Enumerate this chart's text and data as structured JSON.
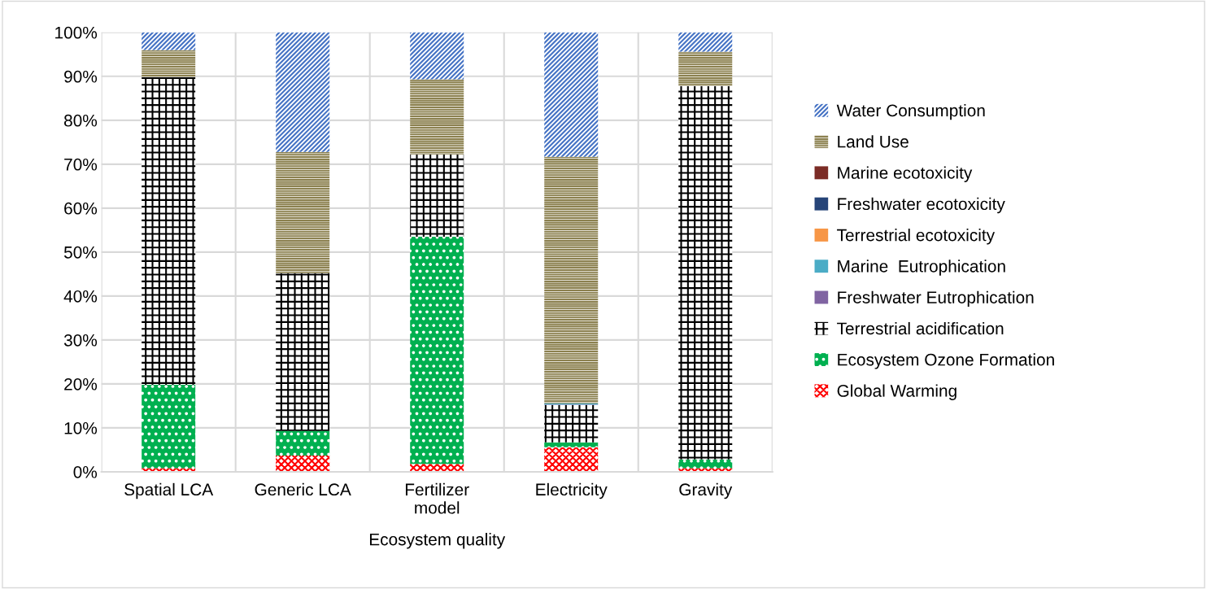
{
  "chart_data": {
    "type": "bar",
    "stacked": true,
    "xlabel": "Ecosystem quality",
    "categories": [
      "Spatial LCA",
      "Generic LCA",
      "Fertilizer\nmodel",
      "Electricity",
      "Gravity"
    ],
    "series": [
      {
        "name": "Global Warming",
        "color": "#ff0000",
        "values": [
          0.8,
          3.7,
          1.8,
          5.6,
          0.8
        ]
      },
      {
        "name": "Ecosystem Ozone Formation",
        "color": "#00b050",
        "values": [
          19.0,
          5.6,
          51.7,
          1.1,
          2.0
        ]
      },
      {
        "name": "Terrestrial acidification",
        "color": "#000000",
        "values": [
          70.0,
          35.9,
          18.7,
          8.5,
          85.0
        ]
      },
      {
        "name": "Freshwater Eutrophication",
        "color": "#8064a2",
        "values": [
          0,
          0,
          0,
          0.1,
          0
        ]
      },
      {
        "name": "Marine  Eutrophication",
        "color": "#4bacc6",
        "values": [
          0,
          0,
          0,
          0.3,
          0
        ]
      },
      {
        "name": "Terrestrial ecotoxicity",
        "color": "#f79646",
        "values": [
          0,
          0,
          0,
          0,
          0
        ]
      },
      {
        "name": "Freshwater ecotoxicity",
        "color": "#264478",
        "values": [
          0,
          0,
          0,
          0,
          0
        ]
      },
      {
        "name": "Marine ecotoxicity",
        "color": "#7b2c26",
        "values": [
          0,
          0,
          0,
          0,
          0
        ]
      },
      {
        "name": "Land Use",
        "color": "#8c8150",
        "values": [
          6.2,
          27.6,
          17.1,
          56.1,
          7.8
        ]
      },
      {
        "name": "Water Consumption",
        "color": "#4472c4",
        "values": [
          4.0,
          27.2,
          10.7,
          28.3,
          4.4
        ]
      }
    ],
    "ylim": [
      0,
      100
    ],
    "yticks": [
      {
        "value": 0,
        "label": "0%"
      },
      {
        "value": 10,
        "label": "10%"
      },
      {
        "value": 20,
        "label": "20%"
      },
      {
        "value": 30,
        "label": "30%"
      },
      {
        "value": 40,
        "label": "40%"
      },
      {
        "value": 50,
        "label": "50%"
      },
      {
        "value": 60,
        "label": "60%"
      },
      {
        "value": 70,
        "label": "70%"
      },
      {
        "value": 80,
        "label": "80%"
      },
      {
        "value": 90,
        "label": "90%"
      },
      {
        "value": 100,
        "label": "100%"
      }
    ],
    "grid": true,
    "legend": "right"
  }
}
